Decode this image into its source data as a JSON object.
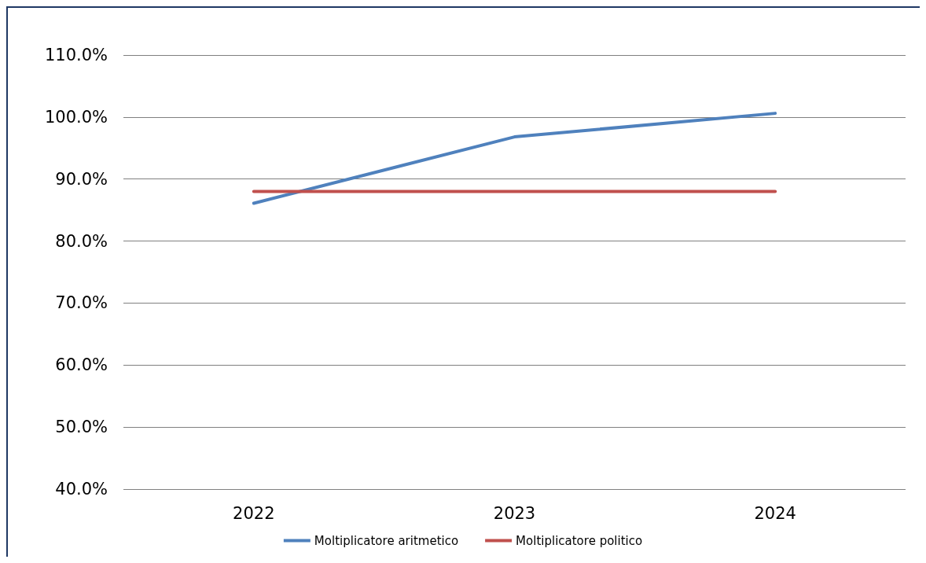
{
  "chart_data": {
    "type": "line",
    "categories": [
      "2022",
      "2023",
      "2024"
    ],
    "series": [
      {
        "name": "Moltiplicatore aritmetico",
        "color": "#4f81bd",
        "values": [
          86.1,
          96.8,
          100.6
        ]
      },
      {
        "name": "Moltiplicatore politico",
        "color": "#c0504d",
        "values": [
          88.0,
          88.0,
          88.0
        ]
      }
    ],
    "ylim": [
      40,
      110
    ],
    "yticks": [
      {
        "value": 40,
        "label": "40.0%"
      },
      {
        "value": 50,
        "label": "50.0%"
      },
      {
        "value": 60,
        "label": "60.0%"
      },
      {
        "value": 70,
        "label": "70.0%"
      },
      {
        "value": 80,
        "label": "80.0%"
      },
      {
        "value": 90,
        "label": "90.0%"
      },
      {
        "value": 100,
        "label": "100.0%"
      },
      {
        "value": 110,
        "label": "110.0%"
      }
    ],
    "grid": "y",
    "legend": "bottom",
    "marker": "none",
    "line_style": "solid"
  }
}
